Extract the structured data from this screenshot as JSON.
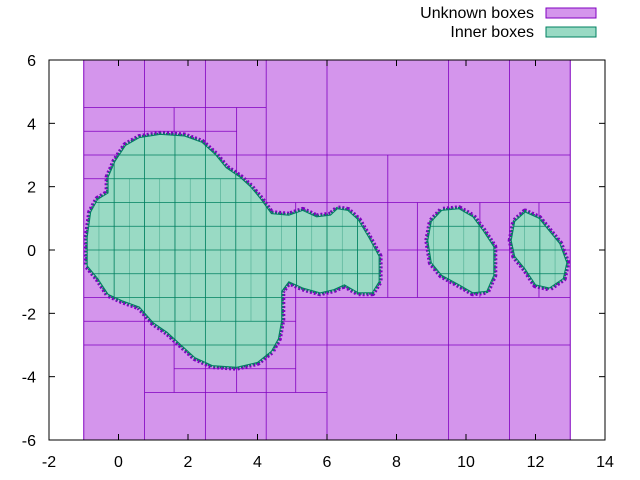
{
  "chart_data": {
    "type": "box-paving",
    "xlim": [
      -2,
      14
    ],
    "ylim": [
      -6,
      6
    ],
    "x_ticks": [
      -2,
      0,
      2,
      4,
      6,
      8,
      10,
      12,
      14
    ],
    "y_ticks": [
      -6,
      -4,
      -2,
      0,
      2,
      4,
      6
    ],
    "grid": false,
    "legend_position": "top-right",
    "series": [
      {
        "name": "Unknown boxes",
        "fill": "#d495ec",
        "stroke": "#8000c0"
      },
      {
        "name": "Inner boxes",
        "fill": "#99dac4",
        "stroke": "#008060"
      }
    ],
    "unknown_region": {
      "x": [
        -1,
        13
      ],
      "y": [
        -6,
        6
      ]
    },
    "unknown_grid_lines": {
      "vertical": [
        {
          "x": 0.75,
          "y": [
            -6,
            6
          ]
        },
        {
          "x": 2.5,
          "y": [
            -6,
            6
          ]
        },
        {
          "x": 4.25,
          "y": [
            -6,
            6
          ]
        },
        {
          "x": 6,
          "y": [
            -6,
            6
          ]
        },
        {
          "x": 9.5,
          "y": [
            -6,
            6
          ]
        },
        {
          "x": 11.25,
          "y": [
            -6,
            6
          ]
        },
        {
          "x": 7.75,
          "y": [
            -1.5,
            3
          ]
        },
        {
          "x": 8.6,
          "y": [
            -1.5,
            1.5
          ]
        },
        {
          "x": 10.4,
          "y": [
            -1.5,
            1.5
          ]
        },
        {
          "x": 12.1,
          "y": [
            -1.5,
            1.5
          ]
        },
        {
          "x": 3.4,
          "y": [
            -4.5,
            4.5
          ]
        },
        {
          "x": 1.6,
          "y": [
            -4.5,
            4.5
          ]
        },
        {
          "x": 5.1,
          "y": [
            -4.5,
            1.5
          ]
        }
      ],
      "horizontal": [
        {
          "y": 3,
          "x": [
            -1,
            13
          ]
        },
        {
          "y": -3,
          "x": [
            -1,
            13
          ]
        },
        {
          "y": 4.5,
          "x": [
            -1,
            4.25
          ]
        },
        {
          "y": -4.5,
          "x": [
            0.75,
            6
          ]
        },
        {
          "y": 1.5,
          "x": [
            4.25,
            13
          ]
        },
        {
          "y": -1.5,
          "x": [
            -1,
            13
          ]
        },
        {
          "y": 0,
          "x": [
            7.75,
            13
          ]
        },
        {
          "y": 3.75,
          "x": [
            -1,
            3.4
          ]
        },
        {
          "y": -3.75,
          "x": [
            1.6,
            5.1
          ]
        },
        {
          "y": 2.25,
          "x": [
            -1,
            4.25
          ]
        },
        {
          "y": -2.25,
          "x": [
            -1,
            5.1
          ]
        }
      ]
    },
    "inner_shapes": [
      {
        "name": "main",
        "points": [
          [
            -0.9,
            0.4
          ],
          [
            -0.8,
            1.2
          ],
          [
            -0.6,
            1.6
          ],
          [
            -0.3,
            1.8
          ],
          [
            -0.3,
            2.3
          ],
          [
            -0.1,
            2.8
          ],
          [
            0.2,
            3.3
          ],
          [
            0.6,
            3.55
          ],
          [
            1.2,
            3.65
          ],
          [
            1.9,
            3.6
          ],
          [
            2.4,
            3.4
          ],
          [
            2.8,
            3.0
          ],
          [
            3.1,
            2.6
          ],
          [
            3.5,
            2.3
          ],
          [
            3.8,
            2.0
          ],
          [
            4.1,
            1.6
          ],
          [
            4.4,
            1.15
          ],
          [
            4.9,
            1.1
          ],
          [
            5.3,
            1.25
          ],
          [
            5.7,
            1.05
          ],
          [
            6.1,
            1.1
          ],
          [
            6.3,
            1.3
          ],
          [
            6.6,
            1.25
          ],
          [
            6.9,
            0.95
          ],
          [
            7.2,
            0.4
          ],
          [
            7.5,
            -0.2
          ],
          [
            7.5,
            -1.0
          ],
          [
            7.3,
            -1.35
          ],
          [
            6.9,
            -1.35
          ],
          [
            6.5,
            -1.1
          ],
          [
            6.2,
            -1.25
          ],
          [
            5.8,
            -1.35
          ],
          [
            5.3,
            -1.2
          ],
          [
            4.9,
            -1.0
          ],
          [
            4.7,
            -1.3
          ],
          [
            4.7,
            -2.2
          ],
          [
            4.6,
            -2.8
          ],
          [
            4.4,
            -3.2
          ],
          [
            4.0,
            -3.55
          ],
          [
            3.4,
            -3.7
          ],
          [
            2.7,
            -3.65
          ],
          [
            2.2,
            -3.4
          ],
          [
            1.8,
            -3.0
          ],
          [
            1.4,
            -2.6
          ],
          [
            1.0,
            -2.3
          ],
          [
            0.6,
            -1.8
          ],
          [
            0.1,
            -1.6
          ],
          [
            -0.3,
            -1.4
          ],
          [
            -0.6,
            -0.9
          ],
          [
            -0.9,
            -0.5
          ]
        ]
      },
      {
        "name": "lobe-1",
        "points": [
          [
            8.9,
            0.3
          ],
          [
            9.0,
            0.9
          ],
          [
            9.3,
            1.25
          ],
          [
            9.8,
            1.3
          ],
          [
            10.2,
            1.05
          ],
          [
            10.5,
            0.6
          ],
          [
            10.8,
            0.1
          ],
          [
            10.8,
            -0.8
          ],
          [
            10.6,
            -1.3
          ],
          [
            10.2,
            -1.35
          ],
          [
            9.8,
            -1.1
          ],
          [
            9.3,
            -0.8
          ],
          [
            9.0,
            -0.4
          ]
        ]
      },
      {
        "name": "lobe-2",
        "points": [
          [
            11.3,
            0.3
          ],
          [
            11.4,
            0.9
          ],
          [
            11.7,
            1.2
          ],
          [
            12.1,
            1.0
          ],
          [
            12.4,
            0.6
          ],
          [
            12.7,
            0.2
          ],
          [
            12.9,
            -0.4
          ],
          [
            12.8,
            -0.9
          ],
          [
            12.4,
            -1.2
          ],
          [
            12.0,
            -1.1
          ],
          [
            11.7,
            -0.6
          ],
          [
            11.4,
            -0.2
          ]
        ]
      }
    ]
  }
}
